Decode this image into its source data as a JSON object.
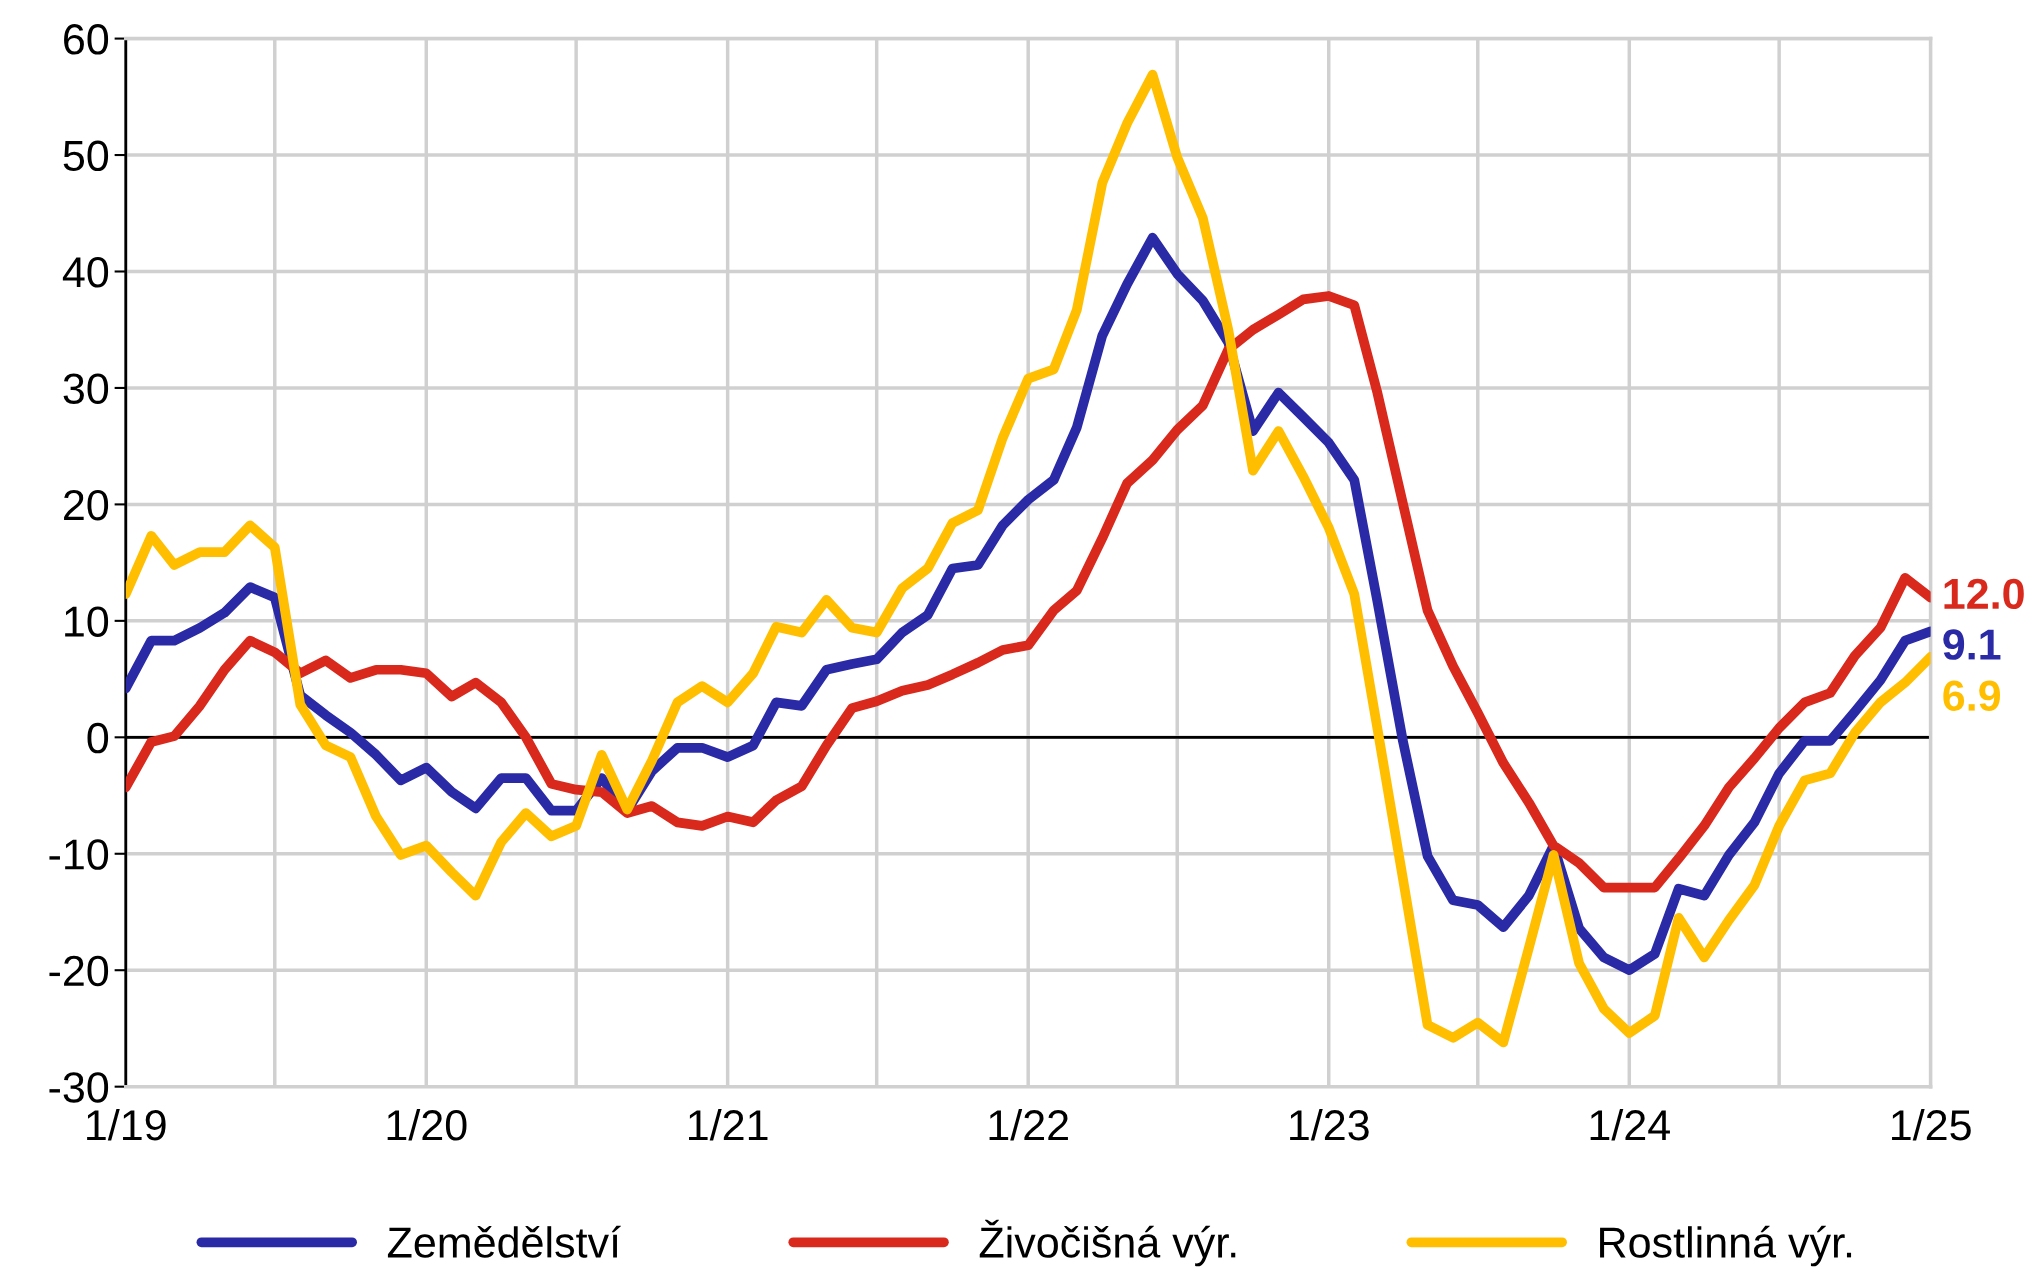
{
  "chart_data": {
    "type": "line",
    "x": [
      "2019-01",
      "2019-02",
      "2019-03",
      "2019-04",
      "2019-05",
      "2019-06",
      "2019-07",
      "2019-08",
      "2019-09",
      "2019-10",
      "2019-11",
      "2019-12",
      "2020-01",
      "2020-02",
      "2020-03",
      "2020-04",
      "2020-05",
      "2020-06",
      "2020-07",
      "2020-08",
      "2020-09",
      "2020-10",
      "2020-11",
      "2020-12",
      "2021-01",
      "2021-02",
      "2021-03",
      "2021-04",
      "2021-05",
      "2021-06",
      "2021-07",
      "2021-08",
      "2021-09",
      "2021-10",
      "2021-11",
      "2021-12",
      "2022-01",
      "2022-02",
      "2022-03",
      "2022-04",
      "2022-05",
      "2022-06",
      "2022-07",
      "2022-08",
      "2022-09",
      "2022-10",
      "2022-11",
      "2022-12",
      "2023-01",
      "2023-02",
      "2023-03",
      "2023-04",
      "2023-05",
      "2023-06",
      "2023-07",
      "2023-08",
      "2023-09",
      "2023-10",
      "2023-11",
      "2023-12",
      "2024-01",
      "2024-02",
      "2024-03",
      "2024-04",
      "2024-05",
      "2024-06",
      "2024-07",
      "2024-08",
      "2024-09",
      "2024-10",
      "2024-11",
      "2024-12",
      "2025-01"
    ],
    "series": [
      {
        "name": "Zemědělství",
        "color": "#2a2aa6",
        "values": [
          4.2,
          8.3,
          8.3,
          9.4,
          10.7,
          12.9,
          12.0,
          3.6,
          1.9,
          0.4,
          -1.5,
          -3.7,
          -2.6,
          -4.7,
          -6.1,
          -3.5,
          -3.5,
          -6.3,
          -6.3,
          -3.5,
          -6.3,
          -2.9,
          -0.9,
          -0.9,
          -1.7,
          -0.7,
          3.0,
          2.7,
          5.8,
          6.3,
          6.7,
          9.0,
          10.5,
          14.5,
          14.8,
          18.2,
          20.4,
          22.1,
          26.6,
          34.5,
          38.9,
          42.9,
          39.8,
          37.5,
          33.9,
          26.3,
          29.6,
          27.5,
          25.3,
          22.1,
          11.7,
          -0.3,
          -10.2,
          -14.0,
          -14.4,
          -16.3,
          -13.6,
          -9.3,
          -16.4,
          -18.9,
          -20.0,
          -18.6,
          -13.0,
          -13.6,
          -10.1,
          -7.3,
          -3.1,
          -0.3,
          -0.3,
          2.2,
          4.9,
          8.3,
          9.1
        ],
        "value_labels": [
          null,
          null,
          null,
          null,
          null,
          null,
          null,
          null,
          null,
          null,
          null,
          null,
          null,
          null,
          null,
          null,
          null,
          null,
          null,
          null,
          null,
          null,
          null,
          null,
          null,
          null,
          null,
          null,
          null,
          null,
          null,
          null,
          null,
          null,
          null,
          null,
          null,
          null,
          null,
          null,
          null,
          null,
          null,
          null,
          null,
          null,
          null,
          null,
          null,
          null,
          null,
          null,
          null,
          null,
          null,
          null,
          null,
          null,
          null,
          null,
          null,
          null,
          null,
          null,
          null,
          null,
          null,
          null,
          null,
          null,
          null,
          null,
          "9.1"
        ]
      },
      {
        "name": "Živočišná výr.",
        "color": "#d9291c",
        "values": [
          -4.3,
          -0.4,
          0.1,
          2.7,
          5.8,
          8.3,
          7.3,
          5.5,
          6.6,
          5.1,
          5.8,
          5.8,
          5.5,
          3.5,
          4.7,
          3.0,
          0.0,
          -4.0,
          -4.5,
          -4.7,
          -6.5,
          -5.9,
          -7.3,
          -7.6,
          -6.8,
          -7.3,
          -5.4,
          -4.2,
          -0.7,
          2.5,
          3.1,
          4.0,
          4.5,
          5.4,
          6.4,
          7.5,
          7.9,
          10.9,
          12.6,
          17.1,
          21.8,
          23.8,
          26.4,
          28.5,
          33.3,
          35.0,
          36.3,
          37.6,
          37.9,
          37.1,
          29.6,
          20.1,
          10.9,
          6.1,
          2.1,
          -2.2,
          -5.6,
          -9.3,
          -10.8,
          -12.9,
          -12.9,
          -12.9,
          -10.4,
          -7.6,
          -4.3,
          -1.8,
          0.8,
          3.0,
          3.8,
          7.0,
          9.4,
          13.7,
          12.0
        ],
        "value_labels": [
          null,
          null,
          null,
          null,
          null,
          null,
          null,
          null,
          null,
          null,
          null,
          null,
          null,
          null,
          null,
          null,
          null,
          null,
          null,
          null,
          null,
          null,
          null,
          null,
          null,
          null,
          null,
          null,
          null,
          null,
          null,
          null,
          null,
          null,
          null,
          null,
          null,
          null,
          null,
          null,
          null,
          null,
          null,
          null,
          null,
          null,
          null,
          null,
          null,
          null,
          null,
          null,
          null,
          null,
          null,
          null,
          null,
          null,
          null,
          null,
          null,
          null,
          null,
          null,
          null,
          null,
          null,
          null,
          null,
          null,
          null,
          null,
          "12.0"
        ]
      },
      {
        "name": "Rostlinná výr.",
        "color": "#ffbf00",
        "values": [
          12.3,
          17.3,
          14.8,
          15.9,
          15.9,
          18.2,
          16.3,
          2.8,
          -0.7,
          -1.7,
          -6.8,
          -10.1,
          -9.3,
          -11.6,
          -13.6,
          -9.0,
          -6.5,
          -8.5,
          -7.6,
          -1.5,
          -6.2,
          -2.0,
          3.0,
          4.4,
          3.0,
          5.5,
          9.5,
          9.0,
          11.8,
          9.4,
          9.0,
          12.8,
          14.5,
          18.4,
          19.5,
          25.7,
          30.8,
          31.6,
          36.7,
          47.6,
          52.7,
          56.9,
          49.8,
          44.6,
          35.0,
          22.9,
          26.3,
          22.4,
          18.0,
          12.3,
          0.8,
          -12.1,
          -24.7,
          -25.8,
          -24.5,
          -26.2,
          -18.1,
          -10.1,
          -19.4,
          -23.3,
          -25.4,
          -23.9,
          -15.5,
          -18.9,
          -15.7,
          -12.7,
          -7.6,
          -3.7,
          -3.1,
          0.4,
          3.0,
          4.7,
          6.9
        ],
        "value_labels": [
          null,
          null,
          null,
          null,
          null,
          null,
          null,
          null,
          null,
          null,
          null,
          null,
          null,
          null,
          null,
          null,
          null,
          null,
          null,
          null,
          null,
          null,
          null,
          null,
          null,
          null,
          null,
          null,
          null,
          null,
          null,
          null,
          null,
          null,
          null,
          null,
          null,
          null,
          null,
          null,
          null,
          null,
          null,
          null,
          null,
          null,
          null,
          null,
          null,
          null,
          null,
          null,
          null,
          null,
          null,
          null,
          null,
          null,
          null,
          null,
          null,
          null,
          null,
          null,
          null,
          null,
          null,
          null,
          null,
          null,
          null,
          null,
          "6.9"
        ]
      }
    ],
    "xlim": [
      "2019-01",
      "2025-01"
    ],
    "xticks": [
      {
        "value": "2019-01",
        "label": "1/19"
      },
      {
        "value": "2019-07",
        "label": null
      },
      {
        "value": "2020-01",
        "label": "1/20"
      },
      {
        "value": "2020-07",
        "label": null
      },
      {
        "value": "2021-01",
        "label": "1/21"
      },
      {
        "value": "2021-07",
        "label": null
      },
      {
        "value": "2022-01",
        "label": "1/22"
      },
      {
        "value": "2022-07",
        "label": null
      },
      {
        "value": "2023-01",
        "label": "1/23"
      },
      {
        "value": "2023-07",
        "label": null
      },
      {
        "value": "2024-01",
        "label": "1/24"
      },
      {
        "value": "2024-07",
        "label": null
      },
      {
        "value": "2025-01",
        "label": "1/25"
      }
    ],
    "ylim": [
      -30,
      60
    ],
    "yticks": [
      -30,
      -20,
      -10,
      0,
      10,
      20,
      30,
      40,
      50,
      60
    ],
    "ref_lines": [
      {
        "axis": "y",
        "value": 0,
        "color": "#000000"
      }
    ],
    "grid": true,
    "legend": "bottom",
    "marker": "none",
    "line_style": "solid"
  }
}
